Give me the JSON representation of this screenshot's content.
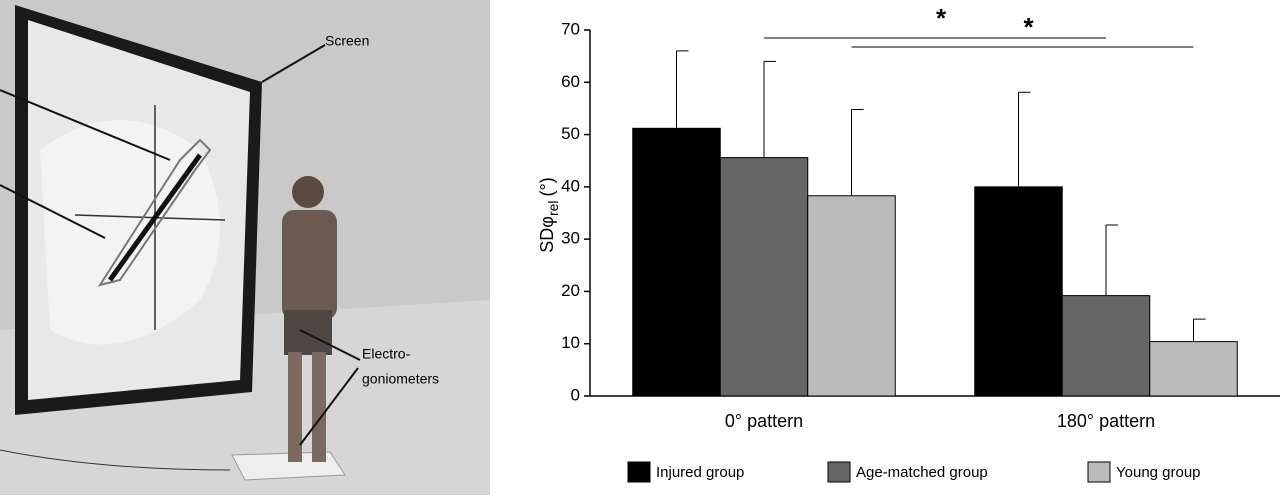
{
  "illustration": {
    "screen_label": "Screen",
    "device_label": [
      "Electro-",
      "goniometers"
    ]
  },
  "chart_data": {
    "type": "bar",
    "y_label": {
      "main": "SDφ",
      "sub": "rel",
      "unit": "(°)"
    },
    "categories": [
      "0° pattern",
      "180° pattern"
    ],
    "series": [
      {
        "name": "Injured group",
        "color": "#000000",
        "values": [
          51.2,
          40.0
        ],
        "errors": [
          14.8,
          18.1
        ]
      },
      {
        "name": "Age-matched group",
        "color": "#666666",
        "values": [
          45.6,
          19.2
        ],
        "errors": [
          18.4,
          13.5
        ]
      },
      {
        "name": "Young group",
        "color": "#bbbbbb",
        "values": [
          38.3,
          10.4
        ],
        "errors": [
          16.5,
          4.3
        ]
      }
    ],
    "ylim": [
      0,
      70
    ],
    "yticks": [
      0,
      10,
      20,
      30,
      40,
      50,
      60,
      70
    ],
    "annotations": [
      {
        "text": "*",
        "from_series": 1,
        "to_series": 1
      },
      {
        "text": "*",
        "from_series": 2,
        "to_series": 2
      }
    ],
    "legend": "bottom"
  }
}
